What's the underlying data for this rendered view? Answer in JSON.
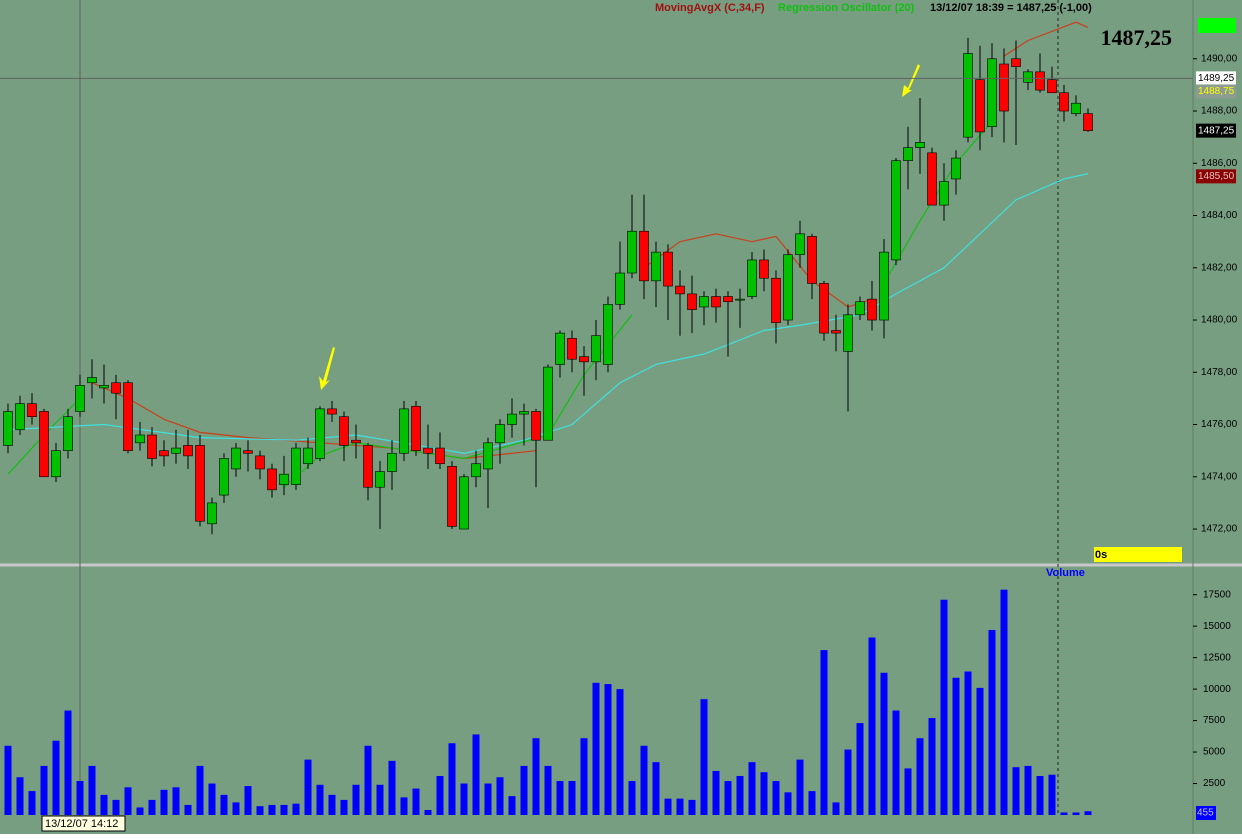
{
  "chart_data": [
    {
      "type": "candlestick",
      "title": "1487,25",
      "status": "13/12/07 18:39 = 1487,25 (-1,00)",
      "timer": "0s",
      "up_color": "#00c000",
      "down_color": "#ff0000",
      "ylim": [
        1470.7,
        1492.25
      ],
      "yticks": [
        {
          "value": 1472,
          "label": "1472,00"
        },
        {
          "value": 1474,
          "label": "1474,00"
        },
        {
          "value": 1476,
          "label": "1476,00"
        },
        {
          "value": 1478,
          "label": "1478,00"
        },
        {
          "value": 1480,
          "label": "1480,00"
        },
        {
          "value": 1482,
          "label": "1482,00"
        },
        {
          "value": 1484,
          "label": "1484,00"
        },
        {
          "value": 1486,
          "label": "1486,00"
        },
        {
          "value": 1488,
          "label": "1488,00"
        },
        {
          "value": 1490,
          "label": "1490,00"
        }
      ],
      "open": [
        1475.2,
        1475.8,
        1476.8,
        1476.5,
        1474.0,
        1475.0,
        1476.5,
        1477.6,
        1477.4,
        1477.6,
        1477.6,
        1475.3,
        1475.6,
        1475.0,
        1474.9,
        1475.2,
        1475.2,
        1472.2,
        1473.3,
        1474.3,
        1475.0,
        1474.8,
        1474.3,
        1473.7,
        1473.7,
        1474.5,
        1474.7,
        1476.6,
        1476.3,
        1475.4,
        1475.2,
        1473.6,
        1474.2,
        1474.9,
        1476.7,
        1475.1,
        1475.1,
        1474.4,
        1472.0,
        1474.0,
        1474.3,
        1475.3,
        1476.0,
        1476.4,
        1476.5,
        1475.4,
        1478.3,
        1479.3,
        1478.6,
        1478.4,
        1478.3,
        1480.6,
        1481.8,
        1483.4,
        1481.5,
        1482.6,
        1481.3,
        1481.0,
        1480.5,
        1480.9,
        1480.9,
        1480.8,
        1480.9,
        1482.3,
        1481.6,
        1480.0,
        1482.5,
        1483.2,
        1481.4,
        1479.6,
        1478.8,
        1480.2,
        1480.8,
        1480.0,
        1482.3,
        1486.1,
        1486.6,
        1486.4,
        1484.4,
        1485.4,
        1487.0,
        1489.2,
        1487.4,
        1489.8,
        1490.0,
        1489.1,
        1489.5,
        1489.2,
        1488.7,
        1487.9,
        1487.9
      ],
      "high": [
        1476.8,
        1477.1,
        1477.2,
        1476.6,
        1475.3,
        1476.6,
        1477.9,
        1478.5,
        1478.3,
        1477.9,
        1477.7,
        1476.1,
        1475.9,
        1475.4,
        1475.8,
        1475.8,
        1475.6,
        1473.2,
        1474.9,
        1475.3,
        1475.4,
        1475.0,
        1474.5,
        1474.8,
        1475.3,
        1475.5,
        1476.7,
        1476.9,
        1476.5,
        1476.0,
        1475.3,
        1474.6,
        1475.4,
        1476.9,
        1476.9,
        1476.0,
        1475.7,
        1474.6,
        1474.1,
        1475.0,
        1475.5,
        1476.2,
        1477.0,
        1476.8,
        1476.6,
        1478.3,
        1479.6,
        1479.6,
        1479.0,
        1480.0,
        1480.9,
        1483.0,
        1484.8,
        1484.8,
        1483.0,
        1482.9,
        1481.9,
        1481.7,
        1481.1,
        1481.2,
        1481.1,
        1481.2,
        1482.6,
        1482.7,
        1481.9,
        1482.7,
        1483.8,
        1483.3,
        1481.5,
        1480.2,
        1480.6,
        1480.9,
        1481.5,
        1483.1,
        1486.2,
        1487.4,
        1488.5,
        1486.6,
        1486.0,
        1486.5,
        1490.8,
        1490.5,
        1490.6,
        1490.4,
        1490.7,
        1489.6,
        1490.2,
        1489.7,
        1489.0,
        1488.6,
        1488.1
      ],
      "low": [
        1474.9,
        1475.6,
        1476.0,
        1474.0,
        1473.8,
        1474.7,
        1476.3,
        1477.0,
        1476.8,
        1476.2,
        1474.9,
        1475.0,
        1474.4,
        1474.4,
        1474.5,
        1474.3,
        1472.1,
        1471.8,
        1473.0,
        1474.0,
        1474.2,
        1473.9,
        1473.2,
        1473.3,
        1473.5,
        1474.3,
        1474.6,
        1476.1,
        1474.6,
        1474.7,
        1473.1,
        1472.0,
        1473.5,
        1474.6,
        1474.8,
        1474.3,
        1474.3,
        1472.0,
        1472.0,
        1473.6,
        1472.8,
        1474.5,
        1475.5,
        1475.2,
        1473.6,
        1475.4,
        1477.8,
        1478.0,
        1477.1,
        1477.7,
        1478.0,
        1480.4,
        1481.6,
        1480.8,
        1480.5,
        1480.0,
        1479.4,
        1479.5,
        1479.8,
        1479.9,
        1478.6,
        1479.7,
        1480.8,
        1481.1,
        1479.1,
        1479.8,
        1482.0,
        1480.8,
        1479.2,
        1478.8,
        1476.5,
        1480.0,
        1479.6,
        1479.3,
        1482.1,
        1485.0,
        1485.6,
        1484.4,
        1483.8,
        1484.8,
        1486.8,
        1486.5,
        1487.0,
        1486.8,
        1486.7,
        1488.8,
        1488.7,
        1488.7,
        1487.6,
        1487.8,
        1487.2
      ],
      "close": [
        1476.5,
        1476.8,
        1476.3,
        1474.0,
        1475.0,
        1476.3,
        1477.5,
        1477.8,
        1477.5,
        1477.2,
        1475.0,
        1475.6,
        1474.7,
        1474.8,
        1475.1,
        1474.8,
        1472.3,
        1473.0,
        1474.7,
        1475.1,
        1474.9,
        1474.3,
        1473.5,
        1474.1,
        1475.1,
        1475.1,
        1476.6,
        1476.4,
        1475.2,
        1475.3,
        1473.6,
        1474.2,
        1474.9,
        1476.6,
        1475.0,
        1474.9,
        1474.5,
        1472.1,
        1474.0,
        1474.5,
        1475.3,
        1476.0,
        1476.4,
        1476.5,
        1475.4,
        1478.2,
        1479.5,
        1478.5,
        1478.4,
        1479.4,
        1480.6,
        1481.8,
        1483.4,
        1481.5,
        1482.6,
        1481.3,
        1481.0,
        1480.4,
        1480.9,
        1480.5,
        1480.7,
        1480.8,
        1482.3,
        1481.6,
        1479.9,
        1482.5,
        1483.3,
        1481.4,
        1479.5,
        1479.5,
        1480.2,
        1480.7,
        1480.0,
        1482.6,
        1486.1,
        1486.6,
        1486.8,
        1484.4,
        1485.3,
        1486.2,
        1490.2,
        1487.2,
        1490.0,
        1488.0,
        1489.7,
        1489.5,
        1488.8,
        1488.7,
        1488.0,
        1488.3,
        1487.25
      ],
      "series": [
        {
          "name": "MovingAvgX (C,34,F)",
          "color": "#c84018",
          "x": [
            7,
            10,
            13,
            16,
            20,
            26,
            32,
            38,
            44,
            45,
            53,
            56,
            59,
            62,
            64,
            67,
            70,
            72,
            73,
            83,
            85,
            89,
            90
          ],
          "values": [
            1477.6,
            1477.0,
            1476.2,
            1475.7,
            1475.5,
            1475.3,
            1475.1,
            1474.7,
            1475.0,
            null,
            1482.0,
            1483.0,
            1483.3,
            1483.0,
            1483.2,
            1481.5,
            1480.5,
            1480.8,
            null,
            1490.1,
            1490.7,
            1491.4,
            1491.2
          ]
        },
        {
          "name": "Regression Oscillator (20)",
          "color": "#10c010",
          "x": [
            0,
            3,
            6,
            7,
            23,
            26,
            29,
            38,
            45,
            48,
            52,
            53,
            73,
            76,
            79,
            82
          ],
          "values": [
            1474.1,
            1475.6,
            1477.0,
            null,
            1473.6,
            1474.8,
            1475.3,
            1474.7,
            1475.6,
            1477.9,
            1480.2,
            null,
            1481.4,
            1483.8,
            1486.0,
            1487.6
          ]
        },
        {
          "color": "#40e0e0",
          "x": [
            0,
            8,
            16,
            24,
            29,
            38,
            43,
            47,
            51,
            54,
            58,
            63,
            66,
            71,
            74,
            78,
            81,
            84,
            88,
            90
          ],
          "values": [
            1475.8,
            1476.0,
            1475.5,
            1475.4,
            1475.6,
            1474.9,
            1475.4,
            1476.0,
            1477.6,
            1478.3,
            1478.7,
            1479.6,
            1479.8,
            1480.2,
            1481.0,
            1482.0,
            1483.3,
            1484.6,
            1485.4,
            1485.6
          ]
        }
      ],
      "price_markers": [
        {
          "value": 1489.25,
          "label": "1489,25",
          "color": "#ffffff",
          "text_color": "#000000"
        },
        {
          "value": 1488.75,
          "label": "1488,75",
          "color": "#8c9c90",
          "text_color": "#ffff00"
        },
        {
          "value": 1487.25,
          "label": "1487,25",
          "color": "#000000",
          "text_color": "#ffffff"
        },
        {
          "value": 1485.5,
          "label": "1485,50",
          "color": "#8b0000",
          "text_color": "#e0c0c0"
        }
      ]
    },
    {
      "type": "bar",
      "title": "Volume",
      "color": "#0000ff",
      "cursor_label": "13/12/07 14:12",
      "cursor_value": 455,
      "ylim": [
        0,
        19700
      ],
      "yticks": [
        2500,
        5000,
        7500,
        10000,
        12500,
        15000,
        17500
      ],
      "values": [
        5500,
        3000,
        1900,
        3900,
        5900,
        8300,
        2700,
        3900,
        1600,
        1200,
        2200,
        600,
        1200,
        2000,
        2200,
        800,
        3900,
        2500,
        1600,
        1000,
        2300,
        700,
        800,
        800,
        900,
        4400,
        2400,
        1600,
        1200,
        2400,
        5500,
        2400,
        4300,
        1400,
        2100,
        400,
        3100,
        5700,
        2500,
        6400,
        2500,
        3000,
        1500,
        3900,
        6100,
        3900,
        2700,
        2700,
        6100,
        10500,
        10400,
        10000,
        2700,
        5500,
        4200,
        1300,
        1300,
        1200,
        9200,
        3500,
        2700,
        3100,
        4200,
        3400,
        2700,
        1800,
        4400,
        1900,
        13100,
        1000,
        5200,
        7300,
        14100,
        11300,
        8300,
        3700,
        6100,
        7700,
        17100,
        10900,
        11400,
        10100,
        14700,
        17900,
        3800,
        3900,
        3100,
        3200,
        200,
        200,
        300
      ]
    }
  ]
}
